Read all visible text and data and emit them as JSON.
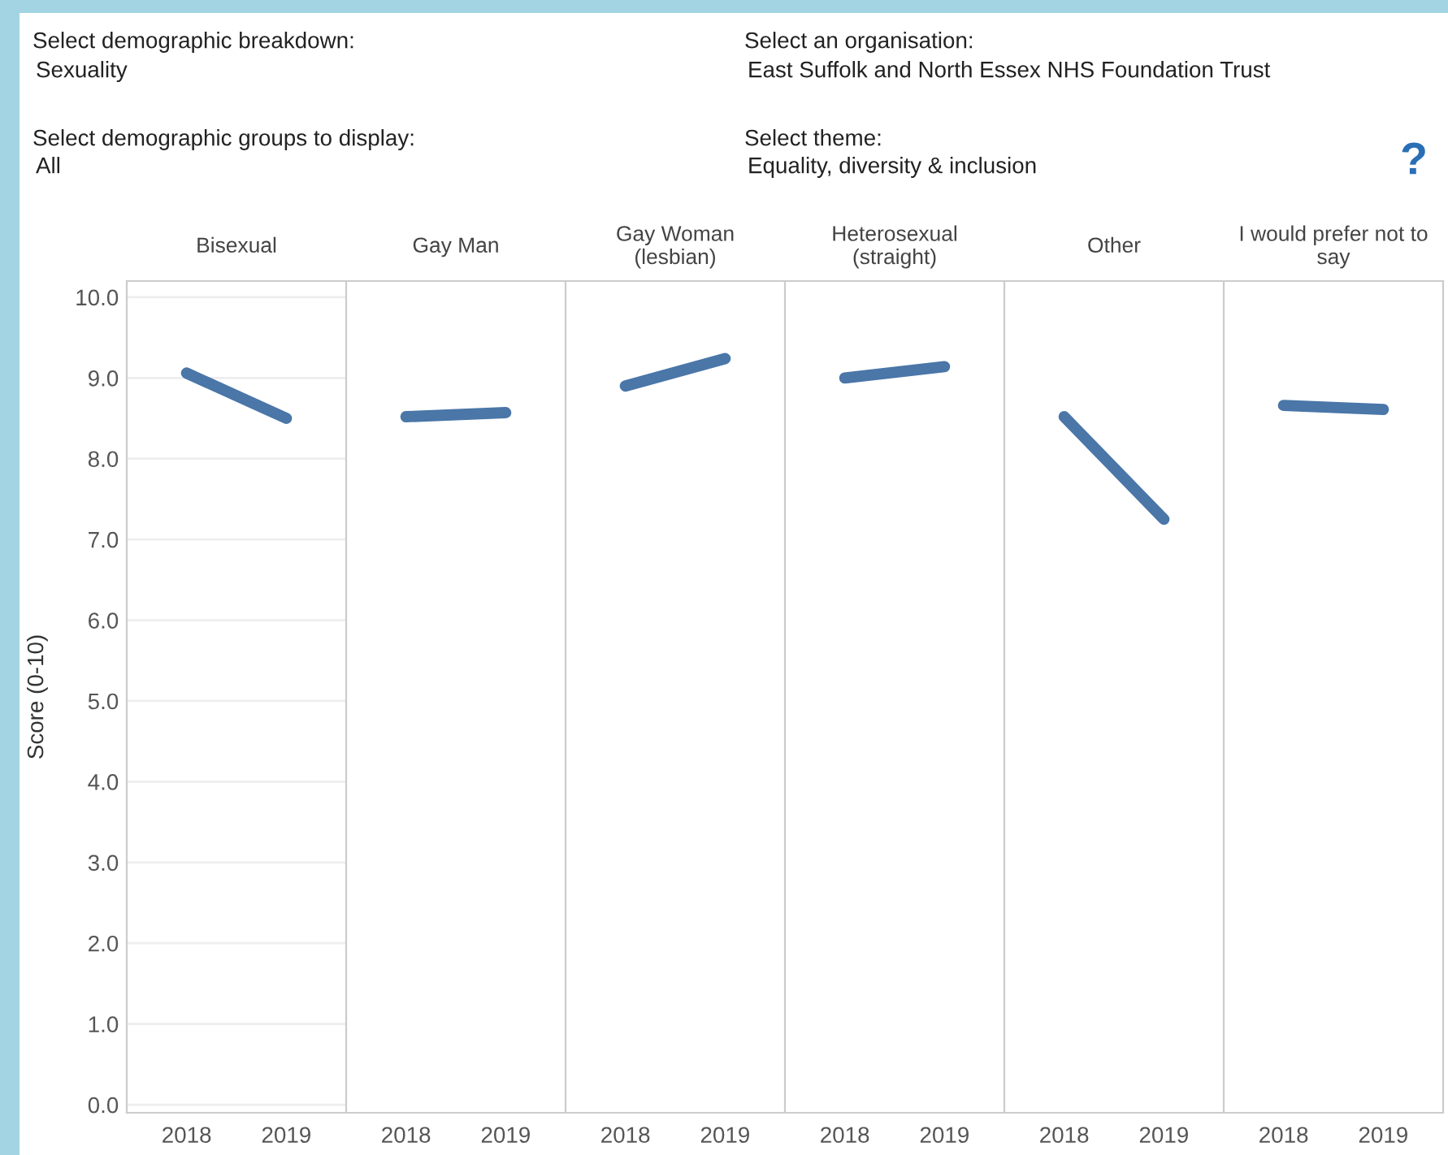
{
  "chart_data": [
    {
      "type": "other",
      "annotations": [
        "Select demographic breakdown:",
        "Sexuality",
        "Select an organisation:",
        "East Suffolk and North Essex NHS Foundation Trust",
        "Select demographic groups to display:",
        "All",
        "Select theme:",
        "Equality, diversity & inclusion",
        "?"
      ]
    },
    {
      "type": "line",
      "title": "Bisexual",
      "ylabel": "Score (0-10)",
      "categories": [
        "2018",
        "2019"
      ],
      "series": [
        {
          "color": "#4a76a8",
          "values": [
            9.06,
            8.5
          ]
        }
      ],
      "ylim": [
        -0.1,
        10.2
      ],
      "yticks": [
        {
          "value": 0,
          "label": "0.0"
        },
        {
          "value": 1,
          "label": "1.0"
        },
        {
          "value": 2,
          "label": "2.0"
        },
        {
          "value": 3,
          "label": "3.0"
        },
        {
          "value": 4,
          "label": "4.0"
        },
        {
          "value": 5,
          "label": "5.0"
        },
        {
          "value": 6,
          "label": "6.0"
        },
        {
          "value": 7,
          "label": "7.0"
        },
        {
          "value": 8,
          "label": "8.0"
        },
        {
          "value": 9,
          "label": "9.0"
        },
        {
          "value": 10,
          "label": "10.0"
        }
      ],
      "grid": "y",
      "marker": "none"
    },
    {
      "type": "line",
      "title": "Gay Man",
      "categories": [
        "2018",
        "2019"
      ],
      "series": [
        {
          "color": "#4a76a8",
          "values": [
            8.52,
            8.57
          ]
        }
      ],
      "ylim": [
        -0.1,
        10.2
      ],
      "grid": "y",
      "marker": "none",
      "tick_labels": "x"
    },
    {
      "type": "line",
      "title": "Gay Woman (lesbian)",
      "categories": [
        "2018",
        "2019"
      ],
      "series": [
        {
          "color": "#4a76a8",
          "values": [
            8.9,
            9.24
          ]
        }
      ],
      "ylim": [
        -0.1,
        10.2
      ],
      "grid": "y",
      "marker": "none",
      "tick_labels": "x"
    },
    {
      "type": "line",
      "title": "Heterosexual (straight)",
      "categories": [
        "2018",
        "2019"
      ],
      "series": [
        {
          "color": "#4a76a8",
          "values": [
            9.0,
            9.14
          ]
        }
      ],
      "ylim": [
        -0.1,
        10.2
      ],
      "grid": "y",
      "marker": "none",
      "tick_labels": "x"
    },
    {
      "type": "line",
      "title": "Other",
      "categories": [
        "2018",
        "2019"
      ],
      "series": [
        {
          "color": "#4a76a8",
          "values": [
            8.52,
            7.25
          ]
        }
      ],
      "ylim": [
        -0.1,
        10.2
      ],
      "grid": "y",
      "marker": "none",
      "tick_labels": "x"
    },
    {
      "type": "line",
      "title": "I would prefer not to say",
      "categories": [
        "2018",
        "2019"
      ],
      "series": [
        {
          "color": "#4a76a8",
          "values": [
            8.66,
            8.61
          ]
        }
      ],
      "ylim": [
        -0.1,
        10.2
      ],
      "grid": "y",
      "marker": "none",
      "tick_labels": "x"
    }
  ]
}
